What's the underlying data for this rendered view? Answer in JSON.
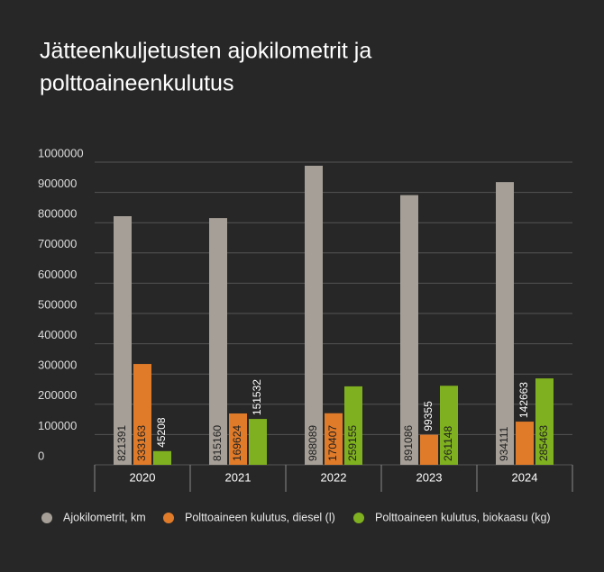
{
  "chart_data": {
    "type": "bar",
    "title": "Jätteenkuljetusten ajokilometrit ja",
    "subtitle": "polttoaineenkulutus",
    "categories": [
      "2020",
      "2021",
      "2022",
      "2023",
      "2024"
    ],
    "series": [
      {
        "name": "Ajokilometrit, km",
        "color": "#a59f97",
        "values": [
          821391,
          815160,
          988089,
          891086,
          934111
        ]
      },
      {
        "name": "Polttoaineen kulutus, diesel (l)",
        "color": "#e07b2a",
        "values": [
          333163,
          169624,
          170407,
          99355,
          142663
        ]
      },
      {
        "name": "Polttoaineen kulutus, biokaasu (kg)",
        "color": "#7fb01f",
        "values": [
          45208,
          151532,
          259155,
          261148,
          285463
        ]
      }
    ],
    "ylim": [
      0,
      1000000
    ],
    "yticks": [
      0,
      100000,
      200000,
      300000,
      400000,
      500000,
      600000,
      700000,
      800000,
      900000,
      1000000
    ],
    "grid": true
  }
}
